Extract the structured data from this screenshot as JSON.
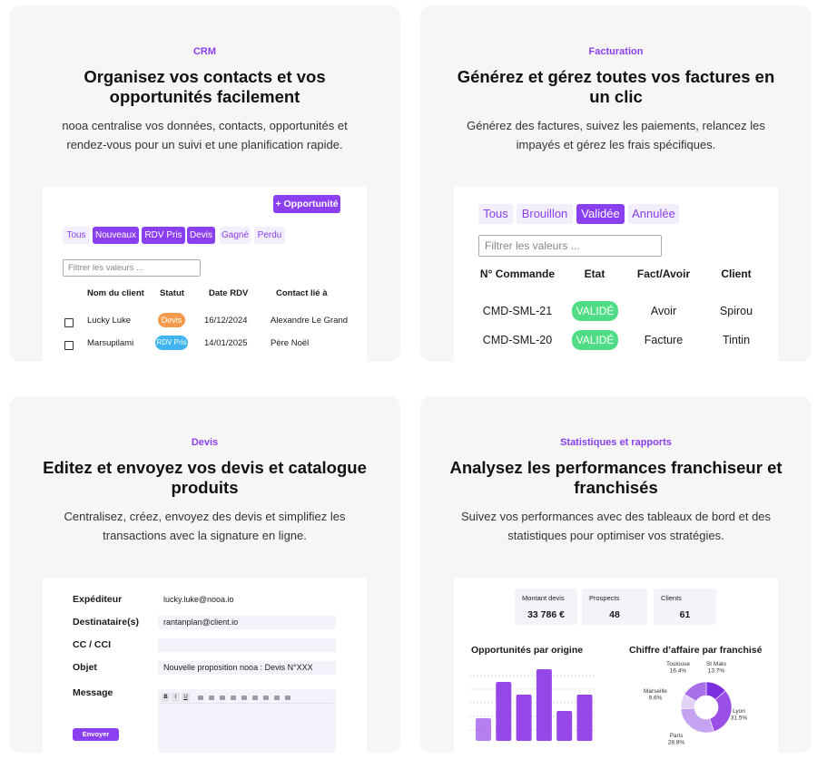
{
  "cards": [
    {
      "tag": "CRM",
      "title": "Organisez vos contacts et vos opportunités facilement",
      "description": "nooa centralise vos données, contacts, opportunités et rendez-vous pour un suivi et une planification rapide."
    },
    {
      "tag": "Facturation",
      "title": "Générez et gérez toutes vos factures en un clic",
      "description": "Générez des factures, suivez les paiements, relancez les impayés et gérez les frais spécifiques."
    },
    {
      "tag": "Devis",
      "title": "Editez et envoyez vos devis et catalogue produits",
      "description": "Centralisez, créez, envoyez des devis et simplifiez les transactions avec la signature en ligne."
    },
    {
      "tag": "Statistiques et rapports",
      "title": "Analysez les performances franchiseur et franchisés",
      "description": "Suivez vos performances avec des tableaux de bord et des statistiques pour optimiser vos stratégies."
    }
  ],
  "crm": {
    "button": "+ Opportunité",
    "tabs": [
      "Tous",
      "Nouveaux",
      "RDV Pris",
      "Devis",
      "Gagné",
      "Perdu"
    ],
    "active_tabs": [
      "Nouveaux",
      "RDV Pris",
      "Devis"
    ],
    "filter_placeholder": "Filtrer les valeurs ...",
    "headers": [
      "Nom du client",
      "Statut",
      "Date RDV",
      "Contact lié à"
    ],
    "rows": [
      [
        "Lucky Luke",
        "Devis",
        "16/12/2024",
        "Alexandre Le Grand"
      ],
      [
        "Marsupilami",
        "RDV Pris",
        "14/01/2025",
        "Père Noël"
      ]
    ],
    "status_colors": {
      "Devis": "#f59a4a",
      "RDV Pris": "#3fb4f0"
    }
  },
  "facturation": {
    "tabs": [
      "Tous",
      "Brouillon",
      "Validée",
      "Annulée"
    ],
    "active_tabs": [
      "Validée"
    ],
    "filter_placeholder": "Filtrer les valeurs ...",
    "headers": [
      "N° Commande",
      "Etat",
      "Fact/Avoir",
      "Client"
    ],
    "rows": [
      [
        "CMD-SML-21",
        "VALIDÉ",
        "Avoir",
        "Spirou"
      ],
      [
        "CMD-SML-20",
        "VALIDÉ",
        "Facture",
        "Tintin"
      ]
    ]
  },
  "devis": {
    "fields": [
      {
        "label": "Expéditeur",
        "value": "lucky.luke@nooa.io"
      },
      {
        "label": "Destinataire(s)",
        "value": "rantanplan@client.io"
      },
      {
        "label": "CC / CCI"
      },
      {
        "label": "Objet",
        "value": "Nouvelle proposition nooa : Devis  N°XXX"
      },
      {
        "label": "Message"
      }
    ],
    "toolbar": [
      "B",
      "I",
      "U"
    ],
    "button": "Envoyer"
  },
  "stats": {
    "kpis": [
      {
        "label": "Montant devis",
        "value": "33 786 €"
      },
      {
        "label": "Prospects",
        "value": 48
      },
      {
        "label": "Clients",
        "value": 61
      }
    ],
    "bar_chart": {
      "type": "bar",
      "title": "Opportunités par origine",
      "values": [
        25,
        65,
        51,
        79,
        33,
        51
      ],
      "color": "#9747e8"
    },
    "pie_chart": {
      "type": "pie",
      "title": "Chiffre d’affaire par franchisé",
      "categories": [
        "St Malo",
        "Lyon",
        "Paris",
        "Marseille",
        "Toulouse"
      ],
      "values": [
        13.7,
        31.5,
        28.8,
        9.6,
        16.4
      ],
      "value_labels": [
        "13.7%",
        "31.5%",
        "28.8%",
        "9.6%",
        "16.4%"
      ],
      "colors": [
        "#7b2fe0",
        "#9a4fe6",
        "#c6a3f1",
        "#e3d2f8",
        "#a970ea"
      ]
    }
  }
}
